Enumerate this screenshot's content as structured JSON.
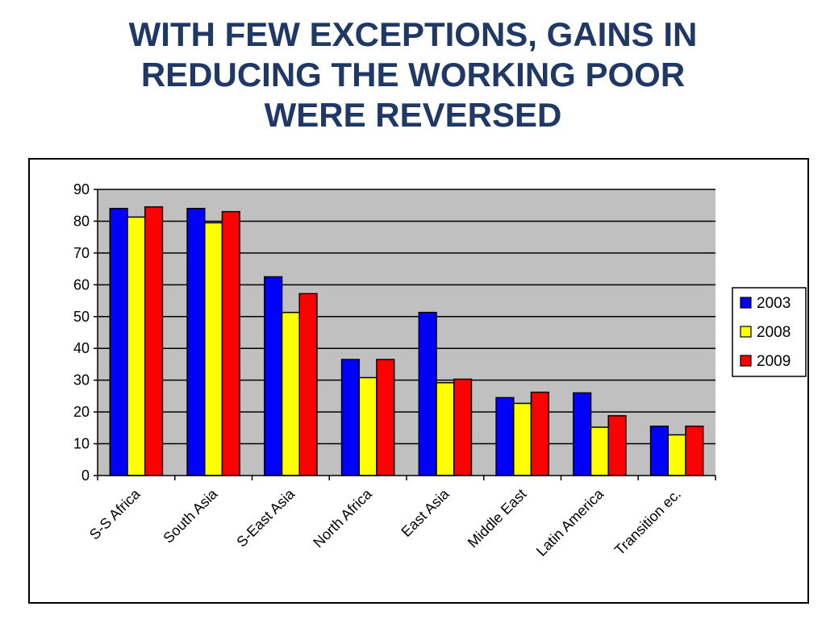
{
  "title_lines": [
    "WITH FEW EXCEPTIONS, GAINS IN",
    "REDUCING THE WORKING POOR",
    "WERE REVERSED"
  ],
  "colors": {
    "title": "#1f3864",
    "plot_background": "#c0c0c0",
    "2003": "#0000ff",
    "2008": "#ffff00",
    "2009": "#ff0000"
  },
  "chart_data": {
    "type": "bar",
    "title": "",
    "xlabel": "",
    "ylabel": "",
    "ylim": [
      0,
      90
    ],
    "y_ticks": [
      0,
      10,
      20,
      30,
      40,
      50,
      60,
      70,
      80,
      90
    ],
    "grid": true,
    "legend_position": "right",
    "categories": [
      "S-S Africa",
      "South Asia",
      "S-East Asia",
      "North Africa",
      "East Asia",
      "Middle East",
      "Latin America",
      "Transition ec."
    ],
    "series": [
      {
        "name": "2003",
        "color": "#0000ff",
        "values": [
          84,
          84,
          62.5,
          36.5,
          51.3,
          24.5,
          26,
          15.5
        ]
      },
      {
        "name": "2008",
        "color": "#ffff00",
        "values": [
          81.3,
          79.5,
          51.3,
          30.8,
          29.2,
          22.7,
          15.2,
          12.8
        ]
      },
      {
        "name": "2009",
        "color": "#ff0000",
        "values": [
          84.5,
          83,
          57.2,
          36.5,
          30.3,
          26.2,
          18.8,
          15.5
        ]
      }
    ]
  }
}
